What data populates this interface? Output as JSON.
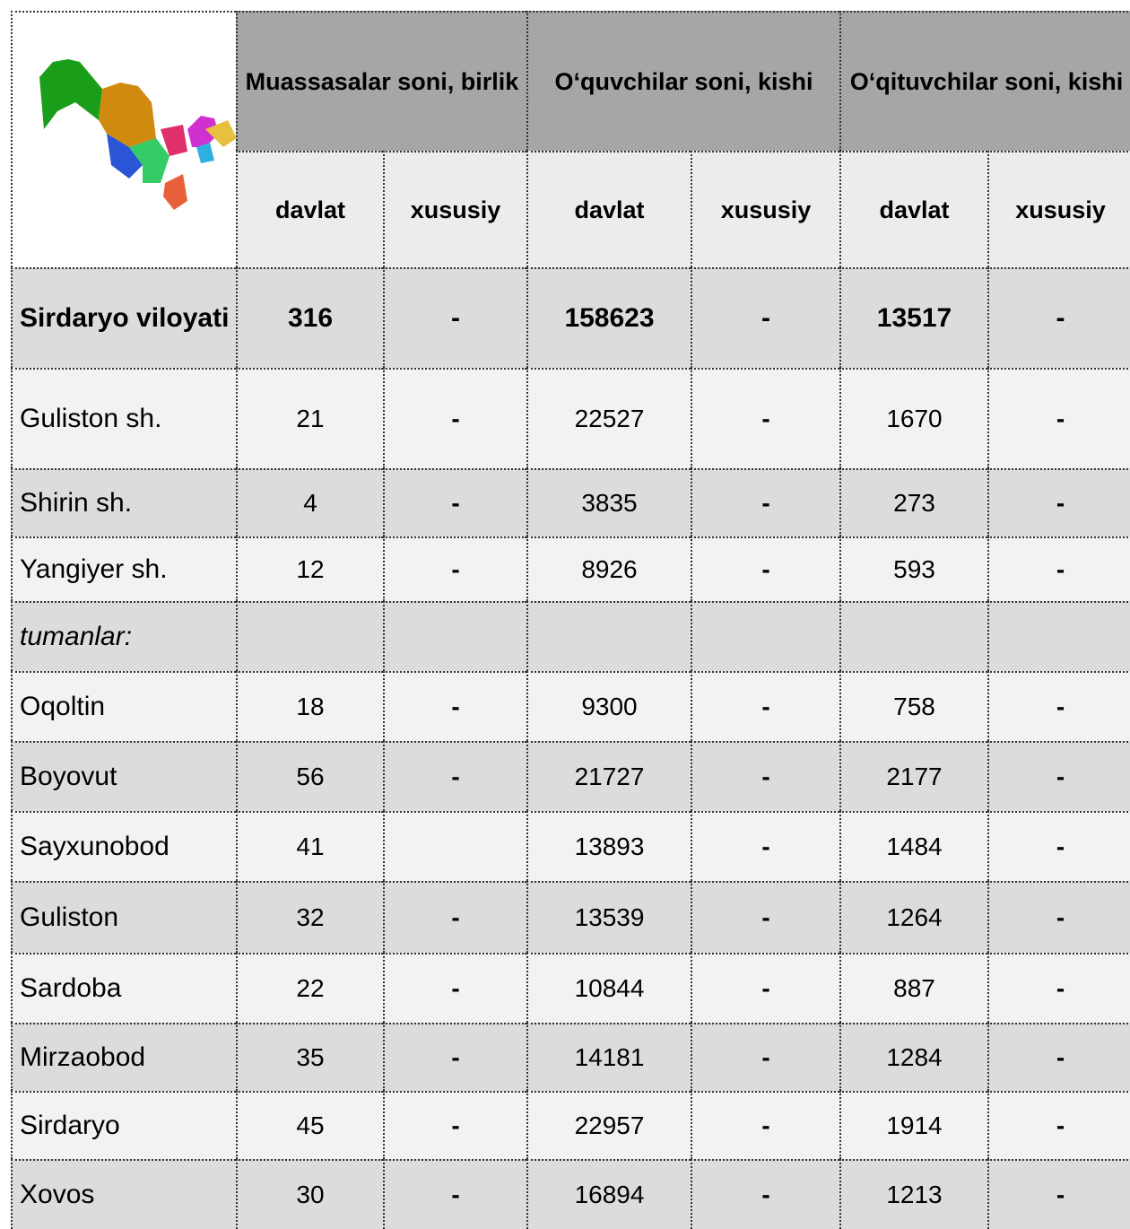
{
  "table": {
    "groups": [
      "Muassasalar soni, birlik",
      "O‘quvchilar soni, kishi",
      "O‘qituvchilar soni, kishi"
    ],
    "subheaders": [
      "davlat",
      "xususiy",
      "davlat",
      "xususiy",
      "davlat",
      "xususiy"
    ],
    "rows": [
      {
        "name": "Sirdaryo viloyati",
        "cells": [
          316,
          "-",
          158623,
          "-",
          13517,
          "-"
        ]
      },
      {
        "name": "Guliston sh.",
        "cells": [
          21,
          "-",
          22527,
          "-",
          1670,
          "-"
        ]
      },
      {
        "name": "Shirin sh.",
        "cells": [
          4,
          "-",
          3835,
          "-",
          273,
          "-"
        ]
      },
      {
        "name": "Yangiyer sh.",
        "cells": [
          12,
          "-",
          8926,
          "-",
          593,
          "-"
        ]
      },
      {
        "name": "tumanlar:"
      },
      {
        "name": "Oqoltin",
        "cells": [
          18,
          "-",
          9300,
          "-",
          758,
          "-"
        ]
      },
      {
        "name": "Boyovut",
        "cells": [
          56,
          "-",
          21727,
          "-",
          2177,
          "-"
        ]
      },
      {
        "name": "Sayxunobod",
        "cells": [
          41,
          null,
          13893,
          "-",
          1484,
          "-"
        ]
      },
      {
        "name": "Guliston",
        "cells": [
          32,
          "-",
          13539,
          "-",
          1264,
          "-"
        ]
      },
      {
        "name": "Sardoba",
        "cells": [
          22,
          "-",
          10844,
          "-",
          887,
          "-"
        ]
      },
      {
        "name": "Mirzaobod",
        "cells": [
          35,
          "-",
          14181,
          "-",
          1284,
          "-"
        ]
      },
      {
        "name": "Sirdaryo",
        "cells": [
          45,
          "-",
          22957,
          "-",
          1914,
          "-"
        ]
      },
      {
        "name": "Xovos",
        "cells": [
          30,
          "-",
          16894,
          "-",
          1213,
          "-"
        ]
      }
    ]
  }
}
